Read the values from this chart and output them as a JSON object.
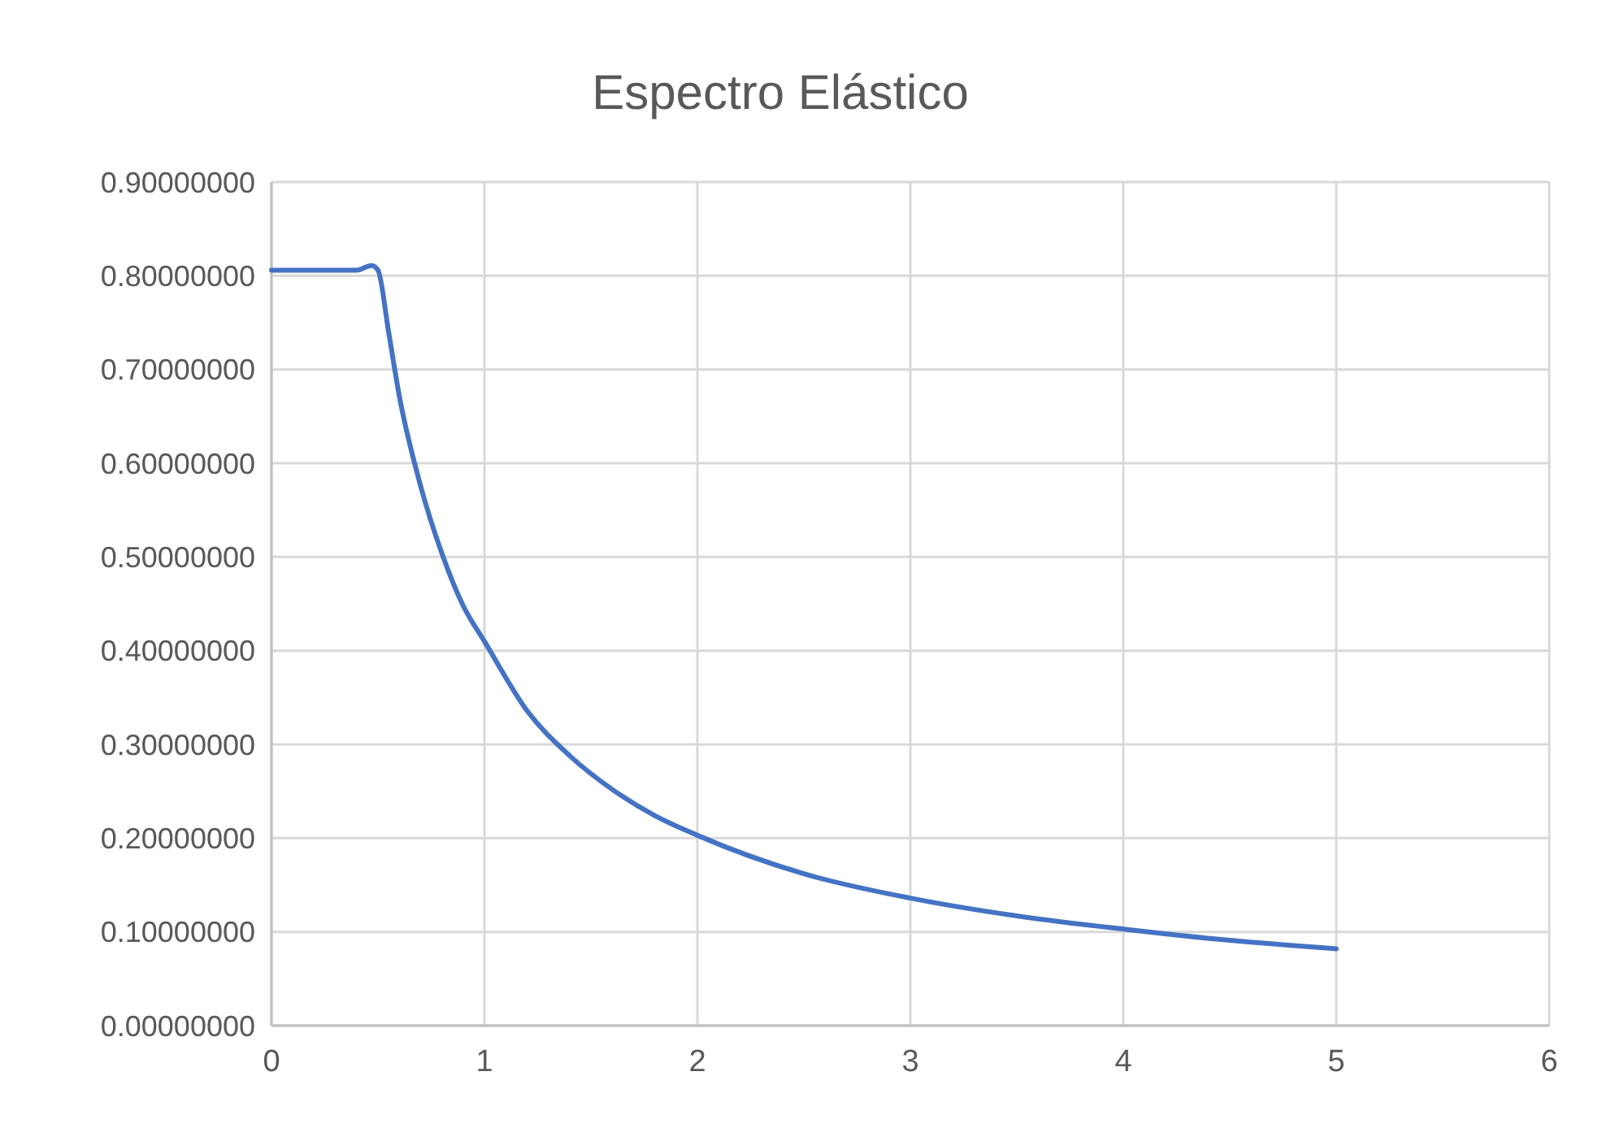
{
  "chart_data": {
    "type": "line",
    "title": "Espectro Elástico",
    "x": [
      0,
      0.4,
      0.47,
      0.5,
      0.55,
      0.6,
      0.7,
      0.8,
      0.9,
      1,
      1.2,
      1.4,
      1.6,
      1.8,
      2,
      2.5,
      3,
      3.5,
      4,
      4.5,
      5
    ],
    "series": [
      {
        "color": "#4472c4",
        "values": [
          0.806,
          0.806,
          0.811,
          0.806,
          0.74,
          0.672,
          0.576,
          0.504,
          0.448,
          0.41,
          0.336,
          0.288,
          0.252,
          0.224,
          0.203,
          0.162,
          0.136,
          0.117,
          0.103,
          0.091,
          0.082
        ]
      }
    ],
    "xlim": [
      0,
      6
    ],
    "xticks": [
      0,
      1,
      2,
      3,
      4,
      5,
      6
    ],
    "ylim": [
      0,
      0.9
    ],
    "yticks": [
      {
        "value": 0,
        "label": "0.00000000"
      },
      {
        "value": 0.1,
        "label": "0.10000000"
      },
      {
        "value": 0.2,
        "label": "0.20000000"
      },
      {
        "value": 0.3,
        "label": "0.30000000"
      },
      {
        "value": 0.4,
        "label": "0.40000000"
      },
      {
        "value": 0.5,
        "label": "0.50000000"
      },
      {
        "value": 0.6,
        "label": "0.60000000"
      },
      {
        "value": 0.7,
        "label": "0.70000000"
      },
      {
        "value": 0.8,
        "label": "0.80000000"
      },
      {
        "value": 0.9,
        "label": "0.90000000"
      }
    ],
    "grid": true,
    "marker": "none",
    "line_style": "solid"
  }
}
